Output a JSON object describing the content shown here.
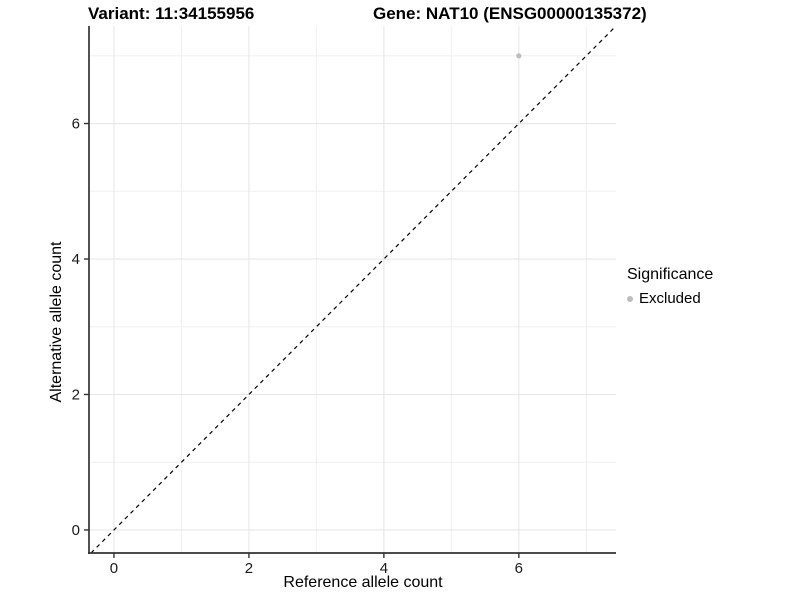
{
  "header": {
    "variant_title": "Variant: 11:34155956",
    "gene_title": "Gene: NAT10 (ENSG00000135372)"
  },
  "legend": {
    "title": "Significance",
    "items": [
      {
        "label": "Excluded",
        "color": "#bdbdbd"
      }
    ]
  },
  "chart_data": {
    "type": "scatter",
    "title": "Variant: 11:34155956   Gene: NAT10 (ENSG00000135372)",
    "xlabel": "Reference allele count",
    "ylabel": "Alternative allele count",
    "xlim": [
      -0.37,
      7.44
    ],
    "ylim": [
      -0.34,
      7.44
    ],
    "xticks": [
      0,
      2,
      4,
      6
    ],
    "yticks": [
      0,
      2,
      4,
      6
    ],
    "minor_gridlines": [
      1,
      3,
      5,
      7
    ],
    "grid": true,
    "legend_position": "right",
    "series": [
      {
        "name": "Excluded",
        "color": "#bdbdbd",
        "points": [
          {
            "x": 6,
            "y": 7
          }
        ]
      }
    ],
    "reference_line": {
      "kind": "abline",
      "slope": 1,
      "intercept": 0,
      "linestyle": "dashed",
      "color": "#000000"
    }
  },
  "colors": {
    "background": "#ffffff",
    "grid_major": "#e7e7e7",
    "grid_minor": "#f0f0f0",
    "axis_line": "#333333",
    "tick_text": "#1a1a1a",
    "point": "#bdbdbd"
  }
}
